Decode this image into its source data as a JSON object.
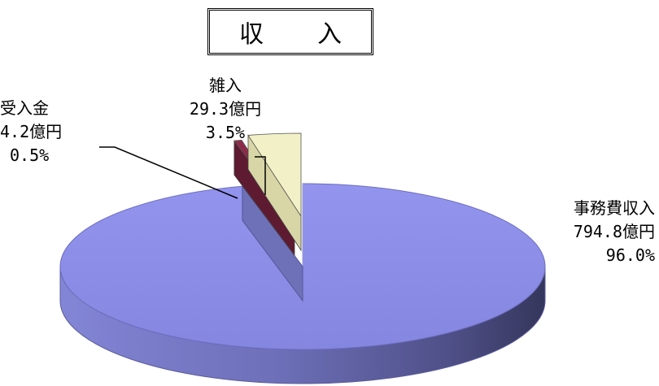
{
  "chart_data": {
    "type": "pie",
    "title": "収　入",
    "slices": [
      {
        "name": "事務費収入",
        "amount": "794.8億円",
        "percent_label": "96.0%",
        "value": 96.0,
        "color": "#8f91ec",
        "exploded": false
      },
      {
        "name": "受入金",
        "amount": "4.2億円",
        "percent_label": "0.5%",
        "value": 0.5,
        "color": "#8c2c4a",
        "exploded": true
      },
      {
        "name": "雑入",
        "amount": "29.3億円",
        "percent_label": "3.5%",
        "value": 3.5,
        "color": "#f2f0c6",
        "exploded": true
      }
    ],
    "legend": "none",
    "style": "3d"
  }
}
